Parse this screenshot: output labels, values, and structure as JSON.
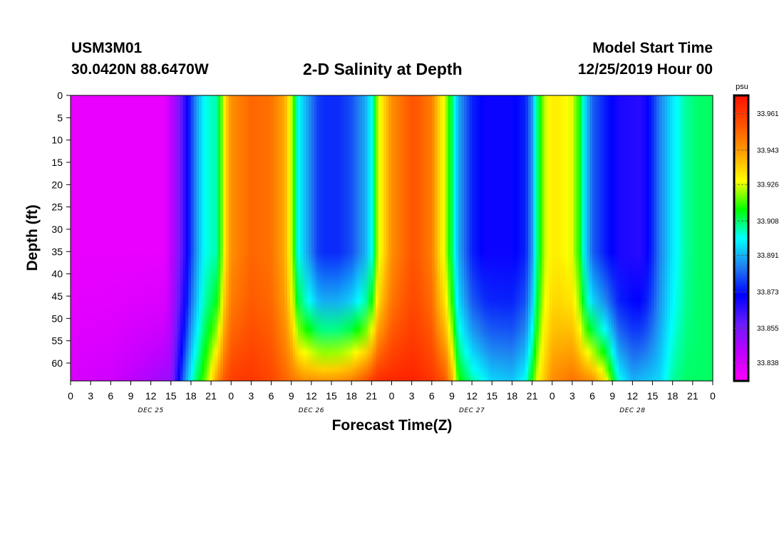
{
  "header": {
    "station_id": "USM3M01",
    "station_location": "30.0420N 88.6470W",
    "title": "2-D Salinity at Depth",
    "start_label": "Model Start Time",
    "start_value": "12/25/2019 Hour 00"
  },
  "chart_data": {
    "type": "heatmap",
    "title": "2-D Salinity at Depth",
    "xlabel": "Forecast Time(Z)",
    "ylabel": "Depth (ft)",
    "x_range_hours": [
      0,
      96
    ],
    "x_tick_labels": [
      "0",
      "3",
      "6",
      "9",
      "12",
      "15",
      "18",
      "21",
      "0",
      "3",
      "6",
      "9",
      "12",
      "15",
      "18",
      "21",
      "0",
      "3",
      "6",
      "9",
      "12",
      "15",
      "18",
      "21",
      "0",
      "3",
      "6",
      "9",
      "12",
      "15",
      "18",
      "21",
      "0"
    ],
    "x_date_labels": [
      {
        "label": "DEC 25",
        "hour": 12
      },
      {
        "label": "DEC 26",
        "hour": 36
      },
      {
        "label": "DEC 27",
        "hour": 60
      },
      {
        "label": "DEC 28",
        "hour": 84
      }
    ],
    "y_range_ft": [
      0,
      64
    ],
    "y_ticks": [
      0,
      5,
      10,
      15,
      20,
      25,
      30,
      35,
      40,
      45,
      50,
      55,
      60
    ],
    "y_inverted": true,
    "colorbar": {
      "unit": "psu",
      "min": 33.829,
      "max": 33.97,
      "tick_values": [
        33.961,
        33.943,
        33.926,
        33.908,
        33.891,
        33.873,
        33.855,
        33.838
      ],
      "tick_labels": [
        "33.961",
        "33.943",
        "33.926",
        "33.908",
        "33.891",
        "33.873",
        "33.855",
        "33.838"
      ],
      "colors": [
        "#ff00ff",
        "#c000ff",
        "#6a1cff",
        "#0000ff",
        "#2080f0",
        "#00ffff",
        "#00ff00",
        "#ffff00",
        "#ffa000",
        "#ff5000",
        "#ff1000"
      ]
    },
    "surface_salinity_profile": {
      "hours": [
        0,
        14,
        16,
        17,
        18,
        19,
        20,
        22,
        23,
        24,
        27,
        30,
        32,
        33,
        34,
        36,
        37,
        38,
        40,
        42,
        44,
        45,
        46,
        48,
        50,
        51,
        52,
        54,
        55,
        56,
        57,
        58,
        60,
        62,
        66,
        68,
        69,
        70,
        71,
        72,
        73,
        74,
        75,
        76,
        77,
        78,
        80,
        82,
        85,
        86,
        87,
        88,
        90,
        92,
        94,
        96
      ],
      "values": [
        33.834,
        33.834,
        33.852,
        33.864,
        33.878,
        33.89,
        33.9,
        33.905,
        33.93,
        33.945,
        33.952,
        33.95,
        33.94,
        33.925,
        33.9,
        33.885,
        33.878,
        33.876,
        33.876,
        33.88,
        33.89,
        33.9,
        33.925,
        33.945,
        33.952,
        33.955,
        33.954,
        33.948,
        33.935,
        33.925,
        33.908,
        33.89,
        33.875,
        33.87,
        33.87,
        33.875,
        33.888,
        33.912,
        33.925,
        33.93,
        33.93,
        33.928,
        33.926,
        33.915,
        33.895,
        33.882,
        33.874,
        33.868,
        33.866,
        33.869,
        33.876,
        33.885,
        33.897,
        33.905,
        33.908,
        33.908
      ]
    },
    "bottom_salinity_profile": {
      "hours": [
        0,
        6,
        15,
        16,
        17,
        18,
        19,
        20,
        21,
        22,
        23,
        24,
        27,
        30,
        33,
        35,
        36,
        38,
        40,
        42,
        44,
        45,
        46,
        48,
        51,
        54,
        56,
        57,
        58,
        60,
        63,
        66,
        68,
        69,
        70,
        72,
        75,
        78,
        80,
        82,
        84,
        88,
        90,
        92,
        94,
        96
      ],
      "values": [
        33.838,
        33.84,
        33.85,
        33.868,
        33.885,
        33.9,
        33.91,
        33.918,
        33.93,
        33.945,
        33.955,
        33.96,
        33.962,
        33.958,
        33.95,
        33.945,
        33.945,
        33.944,
        33.945,
        33.948,
        33.955,
        33.96,
        33.964,
        33.965,
        33.966,
        33.962,
        33.955,
        33.94,
        33.915,
        33.905,
        33.895,
        33.893,
        33.9,
        33.915,
        33.93,
        33.945,
        33.95,
        33.945,
        33.93,
        33.9,
        33.891,
        33.895,
        33.905,
        33.908,
        33.908,
        33.908
      ]
    }
  }
}
